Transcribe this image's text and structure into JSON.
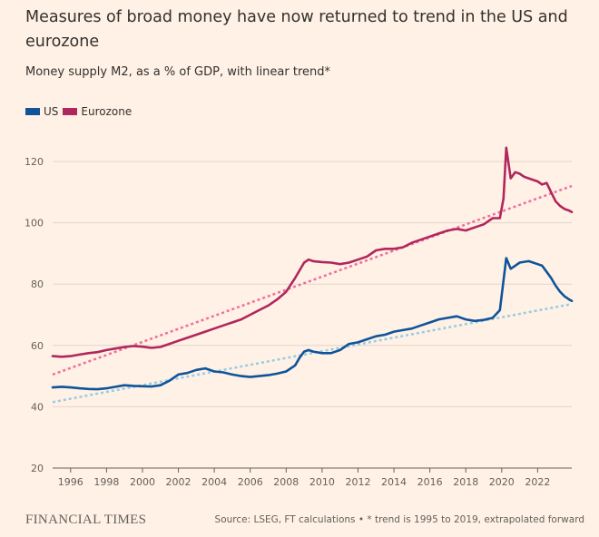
{
  "title": "Measures of broad money have now returned to trend in the US and eurozone",
  "subtitle": "Money supply M2, as a % of GDP, with linear trend*",
  "footer": {
    "logo": "FINANCIAL TIMES",
    "source": "Source: LSEG, FT calculations • * trend is 1995 to 2019, extrapolated forward"
  },
  "colors": {
    "background": "#fff1e5",
    "us": "#0f5499",
    "eurozone": "#b0275d",
    "us_trend": "#96cce4",
    "eurozone_trend": "#f26d9d",
    "grid": "#e3d5c8"
  },
  "chart_data": {
    "type": "line",
    "x_label": "",
    "y_label": "",
    "ylim": [
      20,
      125
    ],
    "xlim": [
      1995.0,
      2023.9
    ],
    "y_ticks": [
      20,
      40,
      60,
      80,
      100,
      120
    ],
    "x_ticks": [
      1996,
      1998,
      2000,
      2002,
      2004,
      2006,
      2008,
      2010,
      2012,
      2014,
      2016,
      2018,
      2020,
      2022
    ],
    "grid": "horizontal",
    "legend": "top-left",
    "series": [
      {
        "name": "US",
        "color": "#0f5499",
        "x": [
          1995.0,
          1995.5,
          1996.0,
          1996.5,
          1997.0,
          1997.5,
          1998.0,
          1998.5,
          1999.0,
          1999.5,
          2000.0,
          2000.5,
          2001.0,
          2001.5,
          2002.0,
          2002.5,
          2003.0,
          2003.5,
          2004.0,
          2004.5,
          2005.0,
          2005.5,
          2006.0,
          2006.5,
          2007.0,
          2007.5,
          2008.0,
          2008.5,
          2008.75,
          2009.0,
          2009.25,
          2009.5,
          2010.0,
          2010.5,
          2011.0,
          2011.5,
          2012.0,
          2012.5,
          2013.0,
          2013.5,
          2014.0,
          2014.5,
          2015.0,
          2015.5,
          2016.0,
          2016.5,
          2017.0,
          2017.5,
          2018.0,
          2018.5,
          2019.0,
          2019.5,
          2019.9,
          2020.25,
          2020.5,
          2020.75,
          2021.0,
          2021.5,
          2021.75,
          2022.0,
          2022.25,
          2022.5,
          2022.75,
          2023.0,
          2023.25,
          2023.5,
          2023.75,
          2023.9
        ],
        "y": [
          46.3,
          46.5,
          46.3,
          46.0,
          45.8,
          45.7,
          46.0,
          46.5,
          47.0,
          46.8,
          46.7,
          46.6,
          47.0,
          48.5,
          50.5,
          51.0,
          52.0,
          52.5,
          51.5,
          51.2,
          50.5,
          50.0,
          49.7,
          50.0,
          50.3,
          50.8,
          51.5,
          53.5,
          56.0,
          58.0,
          58.5,
          58.0,
          57.5,
          57.5,
          58.5,
          60.5,
          61.0,
          62.0,
          63.0,
          63.5,
          64.5,
          65.0,
          65.5,
          66.5,
          67.5,
          68.5,
          69.0,
          69.5,
          68.5,
          68.0,
          68.3,
          69.0,
          71.5,
          88.5,
          85.0,
          86.0,
          87.0,
          87.5,
          87.0,
          86.5,
          86.0,
          84.0,
          82.0,
          79.5,
          77.5,
          76.0,
          75.0,
          74.5
        ]
      },
      {
        "name": "Eurozone",
        "color": "#b0275d",
        "x": [
          1995.0,
          1995.5,
          1996.0,
          1996.5,
          1997.0,
          1997.5,
          1998.0,
          1998.5,
          1999.0,
          1999.5,
          2000.0,
          2000.5,
          2001.0,
          2001.5,
          2002.0,
          2002.5,
          2003.0,
          2003.5,
          2004.0,
          2004.5,
          2005.0,
          2005.5,
          2006.0,
          2006.5,
          2007.0,
          2007.5,
          2008.0,
          2008.5,
          2009.0,
          2009.25,
          2009.5,
          2010.0,
          2010.5,
          2011.0,
          2011.5,
          2012.0,
          2012.5,
          2013.0,
          2013.5,
          2014.0,
          2014.5,
          2015.0,
          2015.5,
          2016.0,
          2016.5,
          2017.0,
          2017.5,
          2018.0,
          2018.5,
          2019.0,
          2019.5,
          2019.9,
          2020.1,
          2020.25,
          2020.5,
          2020.75,
          2021.0,
          2021.25,
          2021.5,
          2022.0,
          2022.25,
          2022.5,
          2022.75,
          2023.0,
          2023.25,
          2023.5,
          2023.75,
          2023.9
        ],
        "y": [
          56.5,
          56.3,
          56.5,
          57.0,
          57.5,
          57.8,
          58.5,
          59.0,
          59.5,
          59.8,
          59.6,
          59.2,
          59.5,
          60.5,
          61.5,
          62.5,
          63.5,
          64.5,
          65.5,
          66.5,
          67.5,
          68.5,
          70.0,
          71.5,
          73.0,
          75.0,
          77.5,
          82.0,
          87.0,
          88.0,
          87.5,
          87.2,
          87.0,
          86.5,
          87.0,
          88.0,
          89.0,
          91.0,
          91.5,
          91.5,
          92.0,
          93.5,
          94.5,
          95.5,
          96.5,
          97.5,
          98.0,
          97.5,
          98.5,
          99.5,
          101.5,
          101.5,
          108.0,
          124.5,
          114.5,
          116.5,
          116.0,
          115.0,
          114.5,
          113.5,
          112.5,
          113.0,
          110.0,
          107.0,
          105.5,
          104.5,
          104.0,
          103.5
        ]
      },
      {
        "name": "US trend",
        "color": "#96cce4",
        "dashed": true,
        "x": [
          1995.0,
          2023.9
        ],
        "y": [
          41.5,
          73.5
        ]
      },
      {
        "name": "Eurozone trend",
        "color": "#f26d9d",
        "dashed": true,
        "x": [
          1995.0,
          2023.9
        ],
        "y": [
          50.5,
          112.0
        ]
      }
    ]
  },
  "legend_items": [
    {
      "label": "US",
      "color": "#0f5499"
    },
    {
      "label": "Eurozone",
      "color": "#b0275d"
    }
  ]
}
